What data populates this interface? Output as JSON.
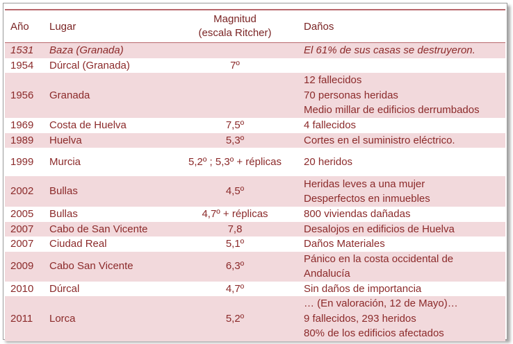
{
  "headers": {
    "year": "Año",
    "place": "Lugar",
    "magnitude_line1": "Magnitud",
    "magnitude_line2": "(escala Ritcher)",
    "damage": "Daños"
  },
  "rows": [
    {
      "year": "1531",
      "place": "Baza (Granada)",
      "magnitude": "",
      "damage": [
        "El 61% de sus casas se destruyeron."
      ]
    },
    {
      "year": "1954",
      "place": "Dúrcal (Granada)",
      "magnitude": "7º",
      "damage": [
        ""
      ]
    },
    {
      "year": "1956",
      "place": "Granada",
      "magnitude": "",
      "damage": [
        "12 fallecidos",
        "70 personas heridas",
        "Medio millar de edificios derrumbados"
      ]
    },
    {
      "year": "1969",
      "place": "Costa de Huelva",
      "magnitude": "7,5º",
      "damage": [
        "4 fallecidos"
      ]
    },
    {
      "year": "1989",
      "place": "Huelva",
      "magnitude": "5,3º",
      "damage": [
        "Cortes en el suministro eléctrico."
      ]
    },
    {
      "year": "1999",
      "place": "Murcia",
      "magnitude": "5,2º ; 5,3º + réplicas",
      "damage": [
        "20 heridos"
      ]
    },
    {
      "year": "2002",
      "place": "Bullas",
      "magnitude": "4,5º",
      "damage": [
        "Heridas leves a una mujer",
        "Desperfectos en inmuebles"
      ]
    },
    {
      "year": "2005",
      "place": "Bullas",
      "magnitude": "4,7º + réplicas",
      "damage": [
        "800 viviendas dañadas"
      ]
    },
    {
      "year": "2007",
      "place": "Cabo de San Vicente",
      "magnitude": "7,8",
      "damage": [
        "Desalojos en edificios de Huelva"
      ]
    },
    {
      "year": "2007",
      "place": "Ciudad Real",
      "magnitude": "5,1º",
      "damage": [
        "Daños Materiales"
      ]
    },
    {
      "year": "2009",
      "place": "Cabo San Vicente",
      "magnitude": "6,3º",
      "damage": [
        "Pánico en la costa occidental de Andalucía"
      ]
    },
    {
      "year": "2010",
      "place": "Dúrcal",
      "magnitude": "4,7º",
      "damage": [
        "Sin daños de importancia"
      ]
    },
    {
      "year": "2011",
      "place": "Lorca",
      "magnitude": "5,2º",
      "damage": [
        "… (En valoración, 12 de Mayo)…",
        "9 fallecidos, 293 heridos",
        "80% de los edificios afectados"
      ]
    }
  ]
}
